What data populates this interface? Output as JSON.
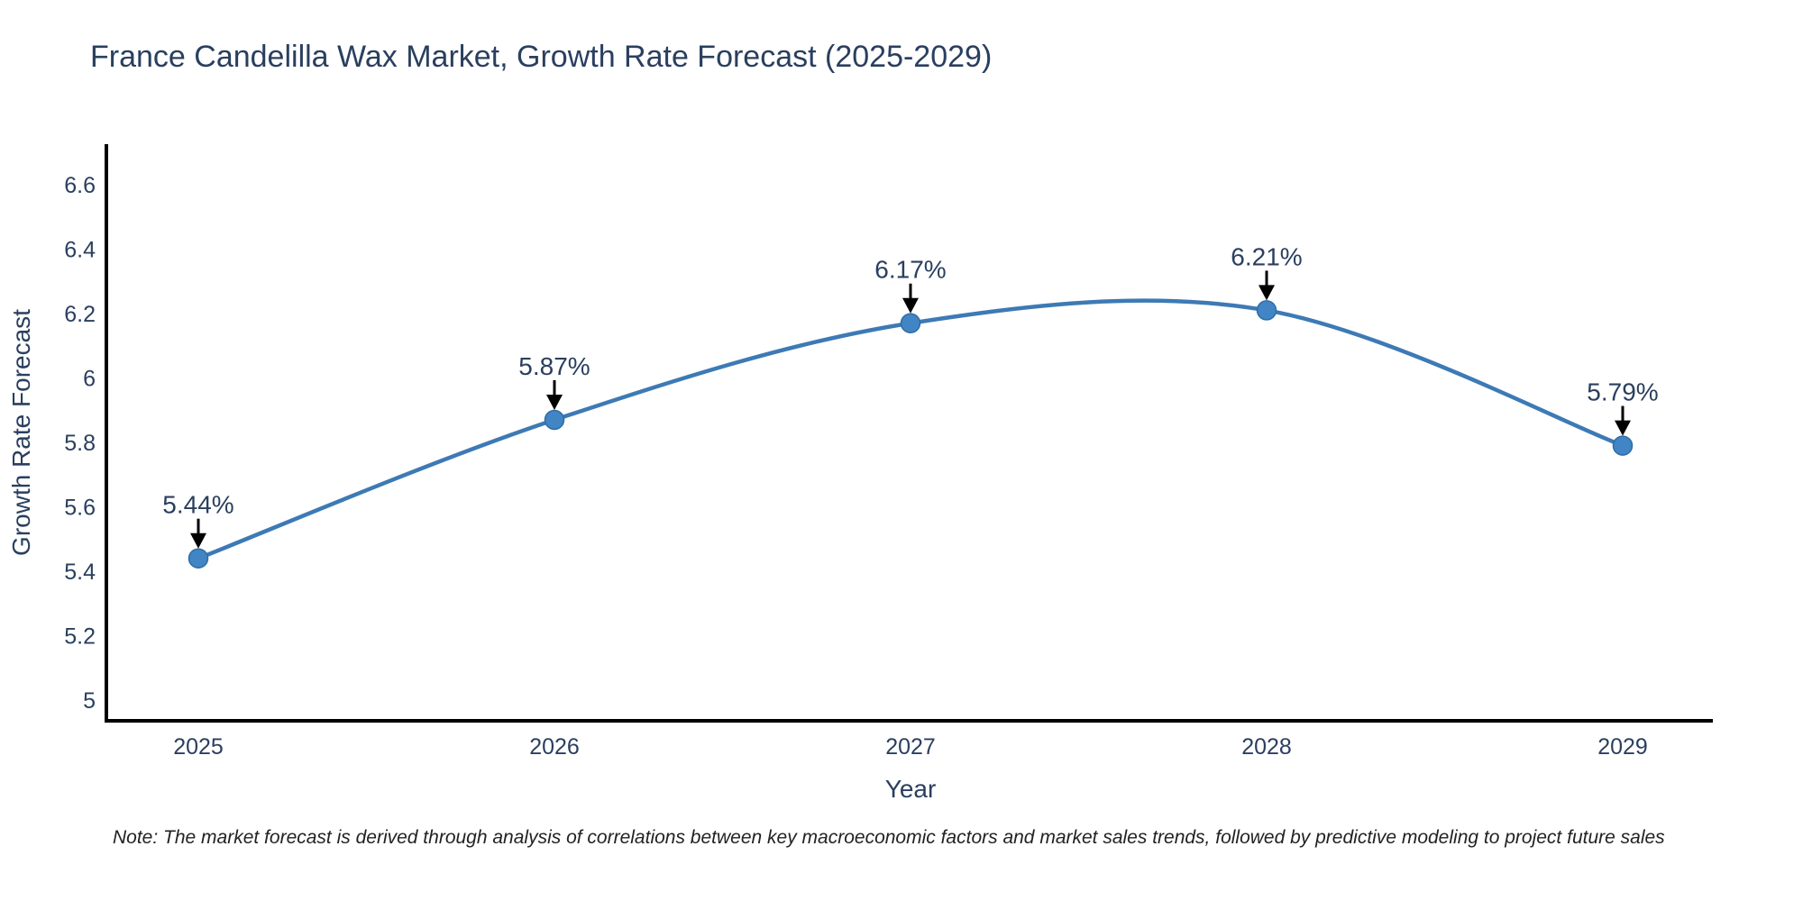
{
  "header": {
    "title": "France Candelilla Wax Market, Growth Rate Forecast (2025-2029)"
  },
  "chart_data": {
    "type": "line",
    "title": "France Candelilla Wax Market, Growth Rate Forecast (2025-2029)",
    "xlabel": "Year",
    "ylabel": "Growth Rate Forecast",
    "x": [
      2025,
      2026,
      2027,
      2028,
      2029
    ],
    "x_tick_labels": [
      "2025",
      "2026",
      "2027",
      "2028",
      "2029"
    ],
    "series": [
      {
        "name": "Growth Rate Forecast",
        "values": [
          5.44,
          5.87,
          6.17,
          6.21,
          5.79
        ],
        "point_labels": [
          "5.44%",
          "5.87%",
          "6.17%",
          "6.21%",
          "5.79%"
        ]
      }
    ],
    "y_tick_labels": [
      "5",
      "5.2",
      "5.4",
      "5.6",
      "5.8",
      "6",
      "6.2",
      "6.4",
      "6.6"
    ],
    "ylim": [
      4.93,
      6.73
    ],
    "xlim": [
      2024.74,
      2029.25
    ],
    "line_shape": "spline",
    "grid": false,
    "legend": "none",
    "annotations": "value label with downward black arrow above each data point",
    "colors": {
      "line": "#3d7ab5",
      "marker_fill": "#4185c4",
      "marker_stroke": "#2e6ca6",
      "axis_line": "#000000",
      "text": "#2a3f5f",
      "arrow": "#000000",
      "note_text": "#222222",
      "background": "#ffffff"
    }
  },
  "footer": {
    "note": "Note: The market forecast is derived through analysis of correlations between key macroeconomic factors and market sales trends, followed by predictive modeling to project future sales"
  }
}
